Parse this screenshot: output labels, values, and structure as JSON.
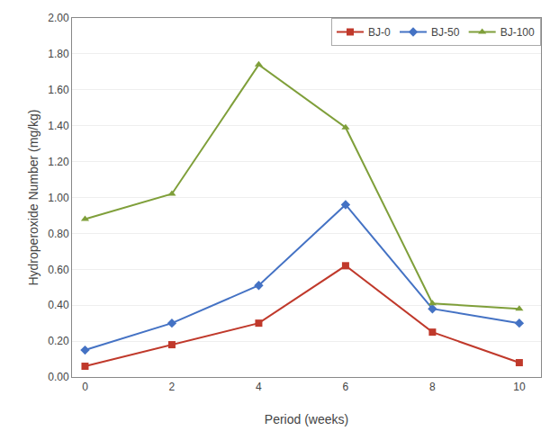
{
  "chart_data": {
    "type": "line",
    "x": [
      0,
      2,
      4,
      6,
      8,
      10
    ],
    "series": [
      {
        "name": "BJ-0",
        "color": "#c0392b",
        "marker": "square",
        "values": [
          0.06,
          0.18,
          0.3,
          0.62,
          0.25,
          0.08
        ]
      },
      {
        "name": "BJ-50",
        "color": "#4472c4",
        "marker": "diamond",
        "values": [
          0.15,
          0.3,
          0.51,
          0.96,
          0.38,
          0.3
        ]
      },
      {
        "name": "BJ-100",
        "color": "#7f9f3a",
        "marker": "triangle-up",
        "values": [
          0.88,
          1.02,
          1.74,
          1.39,
          0.41,
          0.38
        ]
      }
    ],
    "xlabel": "Period (weeks)",
    "ylabel": "Hydroperoxide Number (mg/kg)",
    "xlim": [
      -0.3,
      10.5
    ],
    "xticks": [
      0,
      2,
      4,
      6,
      8,
      10
    ],
    "ylim": [
      0.0,
      2.0
    ],
    "yticks": [
      {
        "value": 0.0,
        "label": "0.00"
      },
      {
        "value": 0.2,
        "label": "0.20"
      },
      {
        "value": 0.4,
        "label": "0.40"
      },
      {
        "value": 0.6,
        "label": "0.60"
      },
      {
        "value": 0.8,
        "label": "0.80"
      },
      {
        "value": 1.0,
        "label": "1.00"
      },
      {
        "value": 1.2,
        "label": "1.20"
      },
      {
        "value": 1.4,
        "label": "1.40"
      },
      {
        "value": 1.6,
        "label": "1.60"
      },
      {
        "value": 1.8,
        "label": "1.80"
      },
      {
        "value": 2.0,
        "label": "2.00"
      }
    ],
    "grid": "y",
    "legend": "upper right"
  }
}
